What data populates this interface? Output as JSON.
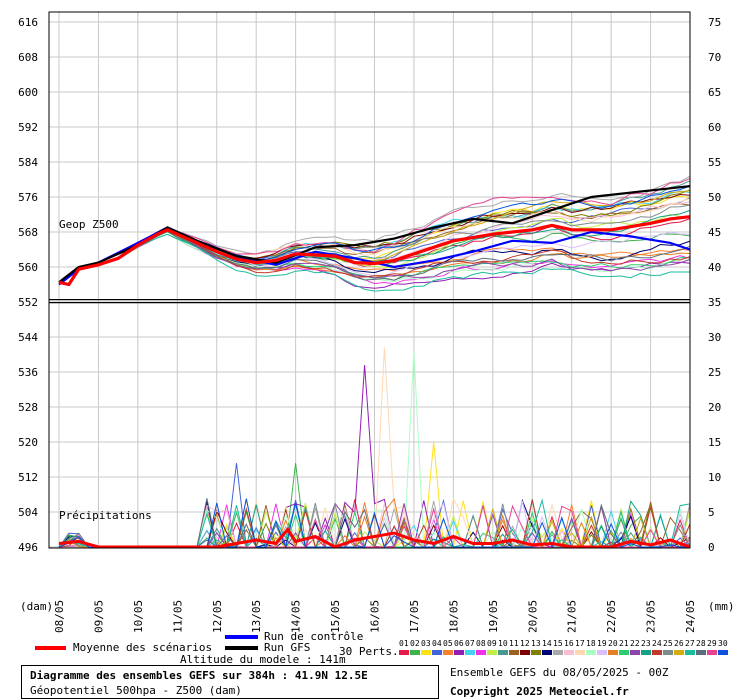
{
  "chart_data": {
    "type": "line",
    "title": "Diagramme des ensembles GEFS sur 384h : 41.9N 12.5E",
    "subtitle": "Géopotentiel 500hpa - Z500 (dam)",
    "panels": {
      "geopotential_label": "Geop Z500",
      "precipitation_label": "Précipitations"
    },
    "y_left": {
      "ticks": [
        616,
        608,
        600,
        592,
        584,
        576,
        568,
        560,
        552,
        544,
        536,
        528,
        520,
        512,
        504,
        496
      ],
      "unit": "(dam)",
      "range": [
        496,
        616
      ]
    },
    "y_right": {
      "ticks": [
        "75",
        "70",
        "65",
        "60",
        "55",
        "50",
        "45",
        "40",
        "35",
        "30",
        "25",
        "20",
        "15",
        "10",
        "5",
        "0"
      ],
      "unit": "(mm)"
    },
    "x_ticks": [
      "08/05",
      "09/05",
      "10/05",
      "11/05",
      "12/05",
      "13/05",
      "14/05",
      "15/05",
      "16/05",
      "17/05",
      "18/05",
      "19/05",
      "20/05",
      "21/05",
      "22/05",
      "23/05",
      "24/05"
    ],
    "x_range_days": [
      0,
      16
    ],
    "climatology_line_z500": 552.2,
    "mean_z500": {
      "name": "Moyenne des scénarios",
      "x": [
        0,
        0.25,
        0.5,
        1,
        1.5,
        2,
        2.5,
        2.75,
        3,
        3.5,
        4,
        4.5,
        5,
        5.5,
        6,
        7,
        7.5,
        8,
        8.5,
        9,
        9.5,
        10,
        11,
        12,
        12.5,
        13,
        14,
        15,
        15.5,
        16
      ],
      "values": [
        556.5,
        556,
        559.5,
        560.5,
        562,
        565,
        567.5,
        568.5,
        567.5,
        565.5,
        563.5,
        561.8,
        561,
        561.5,
        563,
        562.5,
        561,
        560.8,
        561.5,
        563,
        564.5,
        566,
        567.5,
        568.5,
        569.5,
        568.5,
        568.5,
        570,
        571,
        571.5
      ]
    },
    "control_z500": {
      "name": "Run de contrôle",
      "x": [
        0,
        0.5,
        1,
        2,
        2.75,
        3.5,
        4.5,
        5.5,
        6.5,
        7.5,
        8.5,
        9.5,
        10.5,
        11.5,
        12.5,
        13.5,
        14.5,
        15.5,
        16
      ],
      "values": [
        556,
        559.5,
        561,
        565.5,
        569,
        566,
        562.5,
        560.5,
        563.5,
        562,
        560,
        561.5,
        563.5,
        566,
        565.5,
        568,
        567,
        565.5,
        564
      ]
    },
    "gfs_z500": {
      "name": "Run GFS",
      "x": [
        0,
        0.5,
        1,
        2,
        2.75,
        3.5,
        4.5,
        5.5,
        6.5,
        7.5,
        8.5,
        9.5,
        10.5,
        11.5,
        12.5,
        13.5,
        14.5,
        15.5,
        16
      ],
      "values": [
        556.5,
        560,
        561,
        565,
        569,
        566,
        562.5,
        561,
        564.5,
        565,
        566.5,
        569,
        571,
        570,
        573,
        576,
        577,
        578,
        578.5
      ]
    },
    "members_count": 30,
    "members_label": "30 Perts.",
    "member_ids": [
      "01",
      "02",
      "03",
      "04",
      "05",
      "06",
      "07",
      "08",
      "09",
      "10",
      "11",
      "12",
      "13",
      "14",
      "15",
      "16",
      "17",
      "18",
      "19",
      "20",
      "21",
      "22",
      "23",
      "24",
      "25",
      "26",
      "27",
      "28",
      "29",
      "30"
    ],
    "member_colors": [
      "#e6194b",
      "#3cb44b",
      "#ffe119",
      "#4363d8",
      "#f58231",
      "#911eb4",
      "#42d4f4",
      "#f032e6",
      "#bfef45",
      "#469990",
      "#9a6324",
      "#800000",
      "#808000",
      "#000075",
      "#a9a9a9",
      "#fabed4",
      "#ffd8b1",
      "#aaffc3",
      "#dcbeff",
      "#e67e22",
      "#2ecc71",
      "#8e44ad",
      "#16a085",
      "#c0392b",
      "#7f8c8d",
      "#d4ac0d",
      "#1abc9c",
      "#5d6d7e",
      "#e84393",
      "#0652dd"
    ],
    "precip_peaks_mm": [
      {
        "day": 4.5,
        "mm": 12,
        "member": 3
      },
      {
        "day": 7.8,
        "mm": 26,
        "member": 5
      },
      {
        "day": 8.3,
        "mm": 28.5,
        "member": 16
      },
      {
        "day": 9.1,
        "mm": 28,
        "member": 17
      },
      {
        "day": 9.5,
        "mm": 15,
        "member": 2
      },
      {
        "day": 5.9,
        "mm": 12,
        "member": 1
      }
    ],
    "mean_precip_mm": {
      "x": [
        0,
        0.5,
        1,
        2,
        3,
        4,
        4.5,
        5,
        5.5,
        5.8,
        6,
        6.5,
        7,
        7.5,
        8,
        8.5,
        9,
        9.5,
        10,
        10.5,
        11,
        11.5,
        12,
        12.5,
        13,
        13.5,
        14,
        14.5,
        15,
        15.5,
        16
      ],
      "values": [
        0.5,
        0.8,
        0,
        0,
        0,
        0,
        0.5,
        1,
        0.5,
        2.5,
        0.8,
        1.5,
        0,
        1,
        1.5,
        2,
        1,
        0.5,
        1.5,
        0.5,
        0.5,
        1,
        0.3,
        0.5,
        0,
        0,
        0,
        0.8,
        0.3,
        1,
        0
      ]
    }
  },
  "legend": {
    "mean": "Moyenne des scénarios",
    "control": "Run de contrôle",
    "gfs": "Run GFS",
    "altitude": "Altitude du modele : 141m"
  },
  "footer": {
    "title": "Diagramme des ensembles GEFS sur 384h : 41.9N 12.5E",
    "subtitle": "Géopotentiel 500hpa - Z500 (dam)",
    "run_info": "Ensemble GEFS du 08/05/2025 - 00Z",
    "copyright": "Copyright 2025 Meteociel.fr"
  },
  "colors": {
    "mean": "#ff0000",
    "control": "#0000ff",
    "gfs": "#000000",
    "axis": "#000000"
  }
}
